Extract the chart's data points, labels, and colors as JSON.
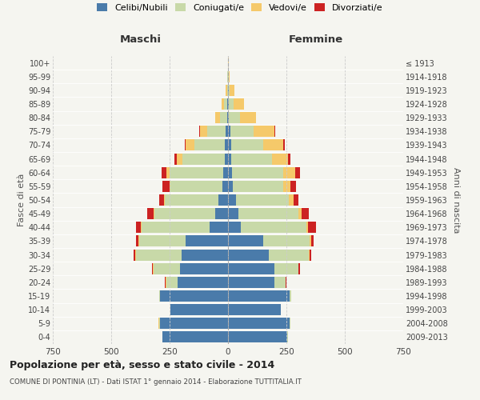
{
  "age_groups": [
    "0-4",
    "5-9",
    "10-14",
    "15-19",
    "20-24",
    "25-29",
    "30-34",
    "35-39",
    "40-44",
    "45-49",
    "50-54",
    "55-59",
    "60-64",
    "65-69",
    "70-74",
    "75-79",
    "80-84",
    "85-89",
    "90-94",
    "95-99",
    "100+"
  ],
  "birth_years": [
    "2009-2013",
    "2004-2008",
    "1999-2003",
    "1994-1998",
    "1989-1993",
    "1984-1988",
    "1979-1983",
    "1974-1978",
    "1969-1973",
    "1964-1968",
    "1959-1963",
    "1954-1958",
    "1949-1953",
    "1944-1948",
    "1939-1943",
    "1934-1938",
    "1929-1933",
    "1924-1928",
    "1919-1923",
    "1914-1918",
    "≤ 1913"
  ],
  "male": {
    "celibi": [
      280,
      290,
      245,
      290,
      215,
      205,
      200,
      180,
      80,
      55,
      40,
      25,
      20,
      15,
      15,
      10,
      5,
      2,
      0,
      0,
      0
    ],
    "coniugati": [
      2,
      5,
      2,
      5,
      50,
      115,
      195,
      200,
      290,
      260,
      230,
      220,
      230,
      180,
      130,
      80,
      30,
      15,
      5,
      2,
      0
    ],
    "vedovi": [
      0,
      2,
      0,
      0,
      2,
      2,
      2,
      3,
      3,
      5,
      5,
      5,
      15,
      25,
      35,
      30,
      20,
      10,
      5,
      2,
      0
    ],
    "divorziati": [
      0,
      0,
      0,
      0,
      2,
      5,
      8,
      10,
      20,
      25,
      20,
      30,
      20,
      8,
      5,
      2,
      0,
      0,
      0,
      0,
      0
    ]
  },
  "female": {
    "nubili": [
      255,
      265,
      225,
      265,
      200,
      200,
      175,
      150,
      55,
      45,
      35,
      22,
      18,
      12,
      12,
      10,
      5,
      3,
      2,
      0,
      0
    ],
    "coniugate": [
      2,
      3,
      2,
      5,
      45,
      100,
      170,
      200,
      280,
      255,
      225,
      215,
      220,
      175,
      140,
      100,
      45,
      20,
      5,
      2,
      0
    ],
    "vedove": [
      0,
      0,
      0,
      0,
      2,
      2,
      3,
      5,
      8,
      15,
      20,
      30,
      50,
      70,
      85,
      90,
      70,
      45,
      20,
      5,
      2
    ],
    "divorziate": [
      0,
      0,
      0,
      0,
      2,
      5,
      8,
      12,
      35,
      30,
      20,
      25,
      20,
      10,
      5,
      2,
      0,
      0,
      0,
      0,
      0
    ]
  },
  "colors": {
    "celibi": "#4a7baa",
    "coniugati": "#c8d9a8",
    "vedovi": "#f5c96a",
    "divorziati": "#cc2222"
  },
  "xlim": 750,
  "title": "Popolazione per età, sesso e stato civile - 2014",
  "subtitle": "COMUNE DI PONTINIA (LT) - Dati ISTAT 1° gennaio 2014 - Elaborazione TUTTITALIA.IT",
  "ylabel_left": "Fasce di età",
  "ylabel_right": "Anni di nascita",
  "xlabel_maschi": "Maschi",
  "xlabel_femmine": "Femmine",
  "bg_color": "#f5f5f0",
  "legend_labels": [
    "Celibi/Nubili",
    "Coniugati/e",
    "Vedovi/e",
    "Divorziati/e"
  ]
}
